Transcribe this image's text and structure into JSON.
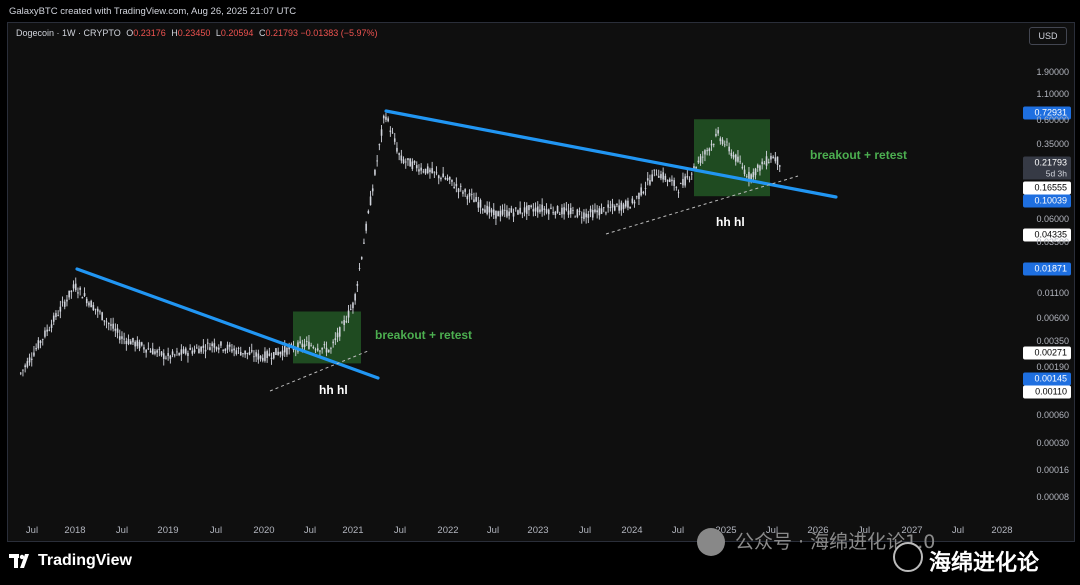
{
  "header": {
    "credit": "GalaxyBTC created with TradingView.com, Aug 26, 2025 21:07 UTC"
  },
  "legend": {
    "symbol": "Dogecoin · 1W · CRYPTO",
    "open_key": "O",
    "open": "0.23176",
    "high_key": "H",
    "high": "0.23450",
    "low_key": "L",
    "low": "0.20594",
    "close_key": "C",
    "close": "0.21793",
    "change": "−0.01383 (−5.97%)"
  },
  "price_axis": {
    "currency_button": "USD",
    "labels": [
      "1.90000",
      "1.10000",
      "0.60000",
      "0.35000",
      "0.06000",
      "0.03500",
      "0.01100",
      "0.00600",
      "0.00350",
      "0.00190",
      "0.00060",
      "0.00030",
      "0.00016",
      "0.00008"
    ],
    "tags": {
      "high_marker": "0.72931",
      "last_price": "0.21793",
      "countdown": "5d 3h",
      "level_a": "0.16555",
      "level_b": "0.10039",
      "level_c": "0.04335",
      "level_d": "0.01871",
      "level_e": "0.00271",
      "level_f": "0.00145",
      "level_g": "0.00110"
    }
  },
  "time_axis": {
    "labels": [
      "Jul",
      "2018",
      "Jul",
      "2019",
      "Jul",
      "2020",
      "Jul",
      "2021",
      "Jul",
      "2022",
      "Jul",
      "2023",
      "Jul",
      "2024",
      "Jul",
      "2025",
      "Jul",
      "2026",
      "Jul",
      "2027",
      "Jul",
      "2028"
    ]
  },
  "annotations": {
    "breakout_left": "breakout + retest",
    "breakout_right": "breakout + retest",
    "hhhl_left": "hh hl",
    "hhhl_right": "hh hl"
  },
  "colors": {
    "trendline": "#2196f3",
    "retest_box": "#2e7d32",
    "annotation_green": "#4caf50",
    "candles": "#d1d4dc",
    "background": "#0f0f0f"
  },
  "chart_data": {
    "type": "line",
    "symbol": "Dogecoin",
    "interval": "1W",
    "scale": "log",
    "x": [
      "2017-06",
      "2018-01",
      "2018-07",
      "2019-01",
      "2019-07",
      "2020-01",
      "2020-07",
      "2020-10",
      "2021-01",
      "2021-05",
      "2021-07",
      "2022-01",
      "2022-07",
      "2023-01",
      "2023-07",
      "2024-01",
      "2024-04",
      "2024-07",
      "2024-12",
      "2025-04",
      "2025-07",
      "2025-08"
    ],
    "series": [
      {
        "values": [
          0.0015,
          0.012,
          0.0035,
          0.0022,
          0.003,
          0.0022,
          0.003,
          0.0026,
          0.008,
          0.73,
          0.24,
          0.15,
          0.065,
          0.075,
          0.065,
          0.085,
          0.18,
          0.12,
          0.43,
          0.16,
          0.26,
          0.21793
        ]
      }
    ],
    "ylim": [
      8e-05,
      1.9
    ],
    "last": {
      "open": 0.23176,
      "high": 0.2345,
      "low": 0.20594,
      "close": 0.21793,
      "change": -0.01383,
      "change_pct": -5.97
    }
  },
  "footer": {
    "brand": "TradingView",
    "watermark": "公众号 · 海绵进化论1.0",
    "watermark2": "海绵进化论"
  }
}
